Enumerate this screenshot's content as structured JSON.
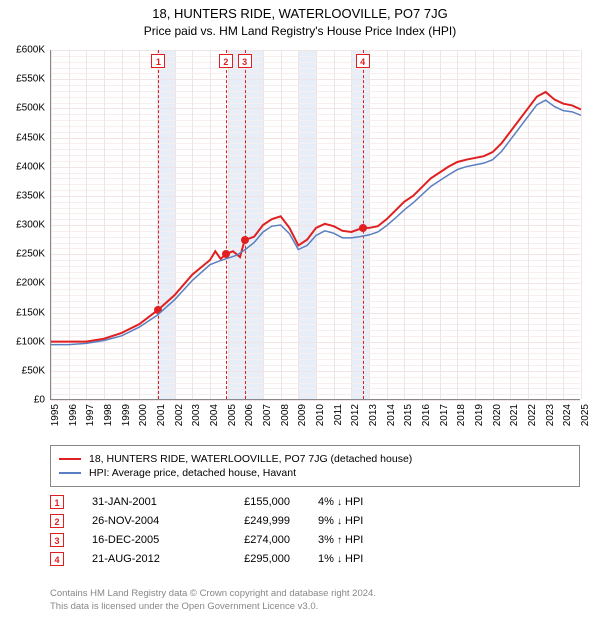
{
  "title": "18, HUNTERS RIDE, WATERLOOVILLE, PO7 7JG",
  "subtitle": "Price paid vs. HM Land Registry's House Price Index (HPI)",
  "chart": {
    "type": "line",
    "x_min_year": 1995,
    "x_max_year": 2025,
    "y_min": 0,
    "y_max": 600000,
    "y_tick_step": 50000,
    "y_tick_prefix": "£",
    "y_tick_suffix": "K",
    "x_ticks": [
      1995,
      1996,
      1997,
      1998,
      1999,
      2000,
      2001,
      2002,
      2003,
      2004,
      2005,
      2006,
      2007,
      2008,
      2009,
      2010,
      2011,
      2012,
      2013,
      2014,
      2015,
      2016,
      2017,
      2018,
      2019,
      2020,
      2021,
      2022,
      2023,
      2024,
      2025
    ],
    "minor_y_step": 10000,
    "grid_color": "#f0e4e4",
    "minor_grid_color": "#f7eeee",
    "background_color": "#ffffff",
    "band_color": "#e8eef7",
    "bands": [
      {
        "from": 2001,
        "to": 2002
      },
      {
        "from": 2005,
        "to": 2006
      },
      {
        "from": 2006,
        "to": 2007
      },
      {
        "from": 2009,
        "to": 2010
      },
      {
        "from": 2012,
        "to": 2013
      }
    ],
    "series": [
      {
        "name": "18, HUNTERS RIDE, WATERLOOVILLE, PO7 7JG (detached house)",
        "color": "#e02020",
        "width": 2,
        "points": [
          [
            1995.0,
            100000
          ],
          [
            1996.0,
            100000
          ],
          [
            1997.0,
            100000
          ],
          [
            1998.0,
            105000
          ],
          [
            1999.0,
            115000
          ],
          [
            2000.0,
            130000
          ],
          [
            2001.08,
            155000
          ],
          [
            2002.0,
            180000
          ],
          [
            2003.0,
            215000
          ],
          [
            2004.0,
            240000
          ],
          [
            2004.3,
            255000
          ],
          [
            2004.6,
            242000
          ],
          [
            2004.9,
            249999
          ],
          [
            2005.3,
            255000
          ],
          [
            2005.7,
            245000
          ],
          [
            2005.96,
            274000
          ],
          [
            2006.5,
            280000
          ],
          [
            2007.0,
            300000
          ],
          [
            2007.5,
            310000
          ],
          [
            2008.0,
            315000
          ],
          [
            2008.5,
            295000
          ],
          [
            2009.0,
            265000
          ],
          [
            2009.5,
            275000
          ],
          [
            2010.0,
            295000
          ],
          [
            2010.5,
            302000
          ],
          [
            2011.0,
            298000
          ],
          [
            2011.5,
            290000
          ],
          [
            2012.0,
            288000
          ],
          [
            2012.64,
            295000
          ],
          [
            2013.0,
            295000
          ],
          [
            2013.5,
            298000
          ],
          [
            2014.0,
            310000
          ],
          [
            2014.5,
            325000
          ],
          [
            2015.0,
            340000
          ],
          [
            2015.5,
            350000
          ],
          [
            2016.0,
            365000
          ],
          [
            2016.5,
            380000
          ],
          [
            2017.0,
            390000
          ],
          [
            2017.5,
            400000
          ],
          [
            2018.0,
            408000
          ],
          [
            2018.5,
            412000
          ],
          [
            2019.0,
            415000
          ],
          [
            2019.5,
            418000
          ],
          [
            2020.0,
            425000
          ],
          [
            2020.5,
            440000
          ],
          [
            2021.0,
            460000
          ],
          [
            2021.5,
            480000
          ],
          [
            2022.0,
            500000
          ],
          [
            2022.5,
            520000
          ],
          [
            2023.0,
            528000
          ],
          [
            2023.5,
            515000
          ],
          [
            2024.0,
            508000
          ],
          [
            2024.5,
            505000
          ],
          [
            2025.0,
            498000
          ]
        ]
      },
      {
        "name": "HPI: Average price, detached house, Havant",
        "color": "#5a7fc0",
        "width": 1.5,
        "points": [
          [
            1995.0,
            95000
          ],
          [
            1996.0,
            95000
          ],
          [
            1997.0,
            97000
          ],
          [
            1998.0,
            102000
          ],
          [
            1999.0,
            110000
          ],
          [
            2000.0,
            125000
          ],
          [
            2001.0,
            145000
          ],
          [
            2002.0,
            172000
          ],
          [
            2003.0,
            205000
          ],
          [
            2004.0,
            232000
          ],
          [
            2004.5,
            238000
          ],
          [
            2004.9,
            242000
          ],
          [
            2005.5,
            248000
          ],
          [
            2006.0,
            258000
          ],
          [
            2006.5,
            270000
          ],
          [
            2007.0,
            288000
          ],
          [
            2007.5,
            298000
          ],
          [
            2008.0,
            300000
          ],
          [
            2008.5,
            285000
          ],
          [
            2009.0,
            258000
          ],
          [
            2009.5,
            265000
          ],
          [
            2010.0,
            282000
          ],
          [
            2010.5,
            290000
          ],
          [
            2011.0,
            286000
          ],
          [
            2011.5,
            278000
          ],
          [
            2012.0,
            278000
          ],
          [
            2012.5,
            280000
          ],
          [
            2013.0,
            283000
          ],
          [
            2013.5,
            288000
          ],
          [
            2014.0,
            299000
          ],
          [
            2014.5,
            312000
          ],
          [
            2015.0,
            326000
          ],
          [
            2015.5,
            338000
          ],
          [
            2016.0,
            352000
          ],
          [
            2016.5,
            366000
          ],
          [
            2017.0,
            376000
          ],
          [
            2017.5,
            386000
          ],
          [
            2018.0,
            395000
          ],
          [
            2018.5,
            400000
          ],
          [
            2019.0,
            403000
          ],
          [
            2019.5,
            406000
          ],
          [
            2020.0,
            412000
          ],
          [
            2020.5,
            426000
          ],
          [
            2021.0,
            446000
          ],
          [
            2021.5,
            466000
          ],
          [
            2022.0,
            486000
          ],
          [
            2022.5,
            506000
          ],
          [
            2023.0,
            514000
          ],
          [
            2023.5,
            503000
          ],
          [
            2024.0,
            496000
          ],
          [
            2024.5,
            494000
          ],
          [
            2025.0,
            488000
          ]
        ]
      }
    ],
    "sale_line_color": "#e02020",
    "sale_dot_color": "#e02020",
    "sales": [
      {
        "n": "1",
        "year": 2001.08,
        "price": 155000,
        "date": "31-JAN-2001",
        "price_label": "£155,000",
        "diff": "4%",
        "dir": "down",
        "against": "HPI"
      },
      {
        "n": "2",
        "year": 2004.9,
        "price": 249999,
        "date": "26-NOV-2004",
        "price_label": "£249,999",
        "diff": "9%",
        "dir": "down",
        "against": "HPI"
      },
      {
        "n": "3",
        "year": 2005.96,
        "price": 274000,
        "date": "16-DEC-2005",
        "price_label": "£274,000",
        "diff": "3%",
        "dir": "up",
        "against": "HPI"
      },
      {
        "n": "4",
        "year": 2012.64,
        "price": 295000,
        "date": "21-AUG-2012",
        "price_label": "£295,000",
        "diff": "1%",
        "dir": "down",
        "against": "HPI"
      }
    ]
  },
  "legend": {
    "items": [
      {
        "color": "#e02020",
        "label": "18, HUNTERS RIDE, WATERLOOVILLE, PO7 7JG (detached house)"
      },
      {
        "color": "#5a7fc0",
        "label": "HPI: Average price, detached house, Havant"
      }
    ]
  },
  "footer": {
    "line1": "Contains HM Land Registry data © Crown copyright and database right 2024.",
    "line2": "This data is licensed under the Open Government Licence v3.0."
  }
}
